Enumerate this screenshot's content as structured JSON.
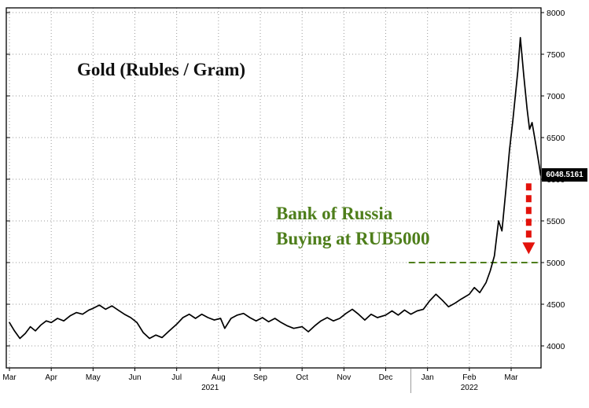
{
  "chart_data": {
    "type": "line",
    "title": "Gold (Rubles / Gram)",
    "xlabel": "",
    "ylabel": "",
    "x_unit": "months since Mar 2021 (0 = Mar 2021, 12 = Mar 2022)",
    "x_tick_labels": [
      "Mar",
      "Apr",
      "May",
      "Jun",
      "Jul",
      "Aug",
      "Sep",
      "Oct",
      "Nov",
      "Dec",
      "Jan",
      "Feb",
      "Mar"
    ],
    "year_labels": [
      {
        "label": "2021",
        "month_index": 4.8
      },
      {
        "label": "2022",
        "month_index": 11.0
      }
    ],
    "y_ticks": [
      4000,
      4500,
      5000,
      5500,
      6000,
      6500,
      7000,
      7500,
      8000
    ],
    "ylim": [
      4000,
      8000
    ],
    "xlim": [
      0,
      12.75
    ],
    "grid": "dotted",
    "legend": "none",
    "line_color": "#000000",
    "grid_color": "#9a9a9a",
    "series": [
      {
        "name": "Gold price in Rubles per Gram",
        "x": [
          0,
          0.12,
          0.25,
          0.38,
          0.5,
          0.62,
          0.75,
          0.88,
          1.0,
          1.15,
          1.3,
          1.45,
          1.6,
          1.75,
          1.9,
          2.0,
          2.15,
          2.3,
          2.45,
          2.6,
          2.75,
          2.9,
          3.05,
          3.2,
          3.35,
          3.5,
          3.65,
          3.8,
          4.0,
          4.15,
          4.3,
          4.45,
          4.6,
          4.75,
          4.9,
          5.05,
          5.15,
          5.3,
          5.45,
          5.6,
          5.75,
          5.9,
          6.05,
          6.2,
          6.35,
          6.5,
          6.65,
          6.8,
          7.0,
          7.15,
          7.3,
          7.45,
          7.6,
          7.75,
          7.9,
          8.05,
          8.2,
          8.35,
          8.5,
          8.65,
          8.8,
          9.0,
          9.15,
          9.3,
          9.45,
          9.6,
          9.75,
          9.9,
          10.05,
          10.2,
          10.35,
          10.5,
          10.65,
          10.8,
          11.0,
          11.12,
          11.25,
          11.4,
          11.5,
          11.6,
          11.7,
          11.78,
          11.88,
          11.96,
          12.04,
          12.1,
          12.16,
          12.22,
          12.3,
          12.38,
          12.44,
          12.5,
          12.58,
          12.66,
          12.72
        ],
        "values": [
          4280,
          4180,
          4090,
          4150,
          4230,
          4180,
          4250,
          4300,
          4280,
          4330,
          4300,
          4360,
          4400,
          4380,
          4430,
          4450,
          4490,
          4440,
          4480,
          4430,
          4380,
          4340,
          4280,
          4160,
          4090,
          4130,
          4100,
          4170,
          4260,
          4340,
          4380,
          4330,
          4380,
          4340,
          4310,
          4330,
          4210,
          4330,
          4370,
          4390,
          4340,
          4300,
          4340,
          4290,
          4330,
          4280,
          4240,
          4210,
          4230,
          4170,
          4240,
          4300,
          4340,
          4300,
          4330,
          4390,
          4440,
          4380,
          4310,
          4380,
          4340,
          4370,
          4420,
          4370,
          4430,
          4380,
          4420,
          4440,
          4540,
          4620,
          4550,
          4470,
          4510,
          4560,
          4620,
          4700,
          4640,
          4760,
          4900,
          5080,
          5500,
          5380,
          5900,
          6350,
          6700,
          7000,
          7300,
          7700,
          7250,
          6850,
          6600,
          6680,
          6450,
          6200,
          6048.5161
        ]
      }
    ],
    "annotation": {
      "line1": "Bank of Russia",
      "line2": "Buying at RUB5000",
      "color": "#4e7e1b"
    },
    "reference_line": {
      "value": 5000,
      "start_month_index": 9.55,
      "color": "#4e7e1b",
      "style": "dashed"
    },
    "arrow": {
      "direction": "down",
      "x_month_index": 12.42,
      "from_value": 5950,
      "to_value": 5100,
      "color": "#e3120b",
      "style": "dashed"
    },
    "last_price_label": "6048.5161",
    "last_price_value": 6048.5161
  }
}
